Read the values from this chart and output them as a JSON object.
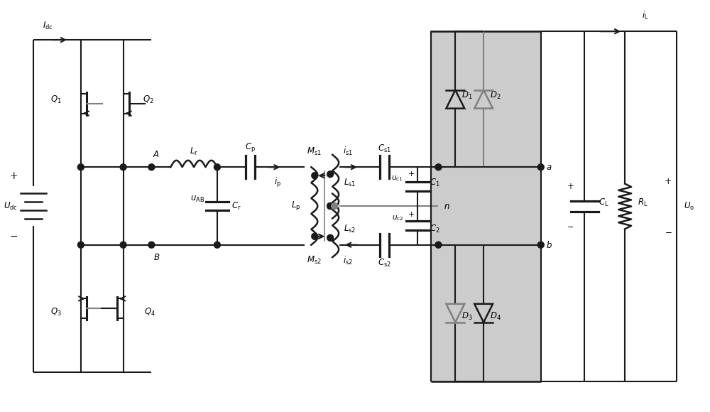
{
  "fig_width": 10.0,
  "fig_height": 5.8,
  "bg_color": "#ffffff",
  "line_color": "#1a1a1a",
  "gray_color": "#808080",
  "lw": 1.5,
  "clw": 1.8
}
